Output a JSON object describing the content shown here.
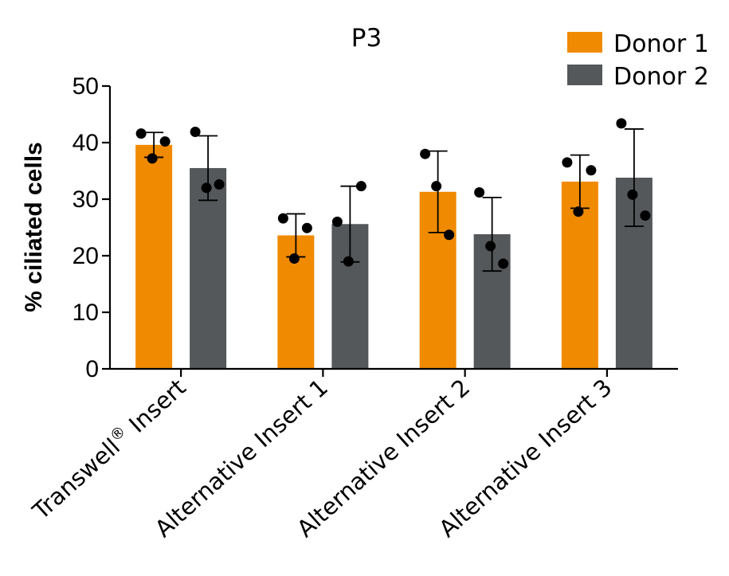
{
  "chart_data": {
    "type": "bar",
    "title": "P3",
    "xlabel": "",
    "ylabel": "% ciliated cells",
    "ylim": [
      0,
      50
    ],
    "yticks": [
      0,
      10,
      20,
      30,
      40,
      50
    ],
    "legend_position": "top-right",
    "grid": false,
    "categories": [
      {
        "text": "Transwell",
        "superscript": "®",
        "suffix": " Insert"
      },
      {
        "text": "Alternative Insert 1",
        "superscript": "",
        "suffix": ""
      },
      {
        "text": "Alternative Insert 2",
        "superscript": "",
        "suffix": ""
      },
      {
        "text": "Alternative Insert 3",
        "superscript": "",
        "suffix": ""
      }
    ],
    "series": [
      {
        "name": "Donor 1",
        "color": "#F08A00",
        "values": [
          39.6,
          23.6,
          31.3,
          33.1
        ],
        "error": [
          2.2,
          3.8,
          7.2,
          4.7
        ],
        "points": [
          [
            41.6,
            37.2,
            40.2
          ],
          [
            26.6,
            19.5,
            24.9
          ],
          [
            38.0,
            32.3,
            23.7
          ],
          [
            36.5,
            27.8,
            35.1
          ]
        ]
      },
      {
        "name": "Donor 2",
        "color": "#55585A",
        "values": [
          35.5,
          25.6,
          23.8,
          33.8
        ],
        "error": [
          5.7,
          6.7,
          6.5,
          8.6
        ],
        "points": [
          [
            41.9,
            32.0,
            32.6
          ],
          [
            26.0,
            19.0,
            32.3
          ],
          [
            31.2,
            21.7,
            18.6
          ],
          [
            43.4,
            30.8,
            27.1
          ]
        ]
      }
    ]
  }
}
